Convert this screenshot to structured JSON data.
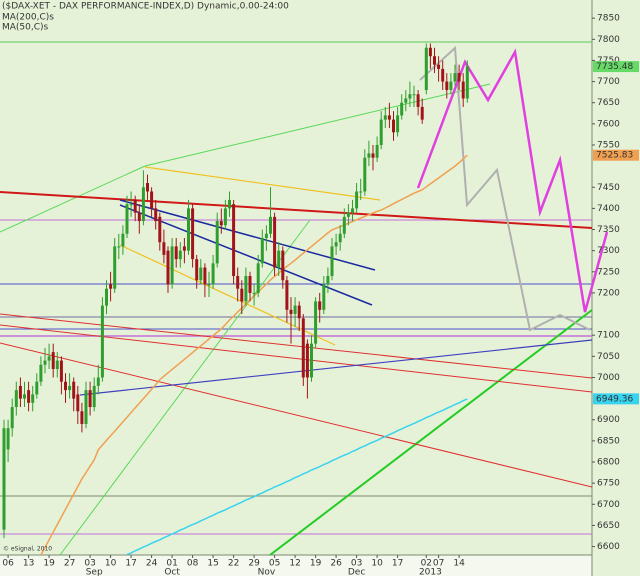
{
  "chart_data": {
    "type": "candlestick",
    "title": "($DAX-XET - DAX PERFORMANCE-INDEX,D) Dynamic,0.00-24:00",
    "categories": [
      null,
      "06",
      null,
      null,
      null,
      null,
      "13",
      null,
      null,
      null,
      null,
      "19",
      null,
      null,
      null,
      null,
      "27",
      null,
      null,
      null,
      null,
      "03",
      null,
      null,
      null,
      null,
      "10",
      null,
      null,
      null,
      null,
      "17",
      null,
      null,
      null,
      null,
      "24",
      null,
      null,
      null,
      null,
      "01",
      null,
      null,
      null,
      null,
      "08",
      null,
      null,
      null,
      null,
      "15",
      null,
      null,
      null,
      null,
      "22",
      null,
      null,
      null,
      null,
      "29",
      null,
      null,
      null,
      null,
      "05",
      null,
      null,
      null,
      null,
      "12",
      null,
      null,
      null,
      null,
      "19",
      null,
      null,
      null,
      null,
      "26",
      null,
      null,
      null,
      null,
      "03",
      null,
      null,
      null,
      null,
      "10",
      null,
      null,
      null,
      null,
      "17",
      null,
      null,
      null,
      null,
      null,
      null,
      "02",
      null,
      null,
      "07",
      null,
      null,
      null,
      null,
      "14",
      null,
      null
    ],
    "month_labels": [
      null,
      null,
      null,
      null,
      null,
      null,
      null,
      null,
      null,
      null,
      null,
      null,
      null,
      null,
      null,
      null,
      null,
      null,
      null,
      null,
      null,
      null,
      "Sep",
      null,
      null,
      null,
      null,
      null,
      null,
      null,
      null,
      null,
      null,
      null,
      null,
      null,
      null,
      null,
      null,
      null,
      null,
      "Oct",
      null,
      null,
      null,
      null,
      null,
      null,
      null,
      null,
      null,
      null,
      null,
      null,
      null,
      null,
      null,
      null,
      null,
      null,
      null,
      null,
      null,
      null,
      "Nov",
      null,
      null,
      null,
      null,
      null,
      null,
      null,
      null,
      null,
      null,
      null,
      null,
      null,
      null,
      null,
      null,
      null,
      null,
      null,
      null,
      null,
      "Dec",
      null,
      null,
      null,
      null,
      null,
      null,
      null,
      null,
      null,
      null,
      null,
      null,
      null,
      null,
      null,
      null,
      null,
      "2013",
      null,
      null,
      null,
      null,
      null,
      null,
      null,
      null,
      null
    ],
    "open": [
      6640,
      6830,
      6880,
      6930,
      6980,
      6950,
      6970,
      6940,
      6960,
      6990,
      7030,
      7040,
      7060,
      7020,
      7040,
      6990,
      6970,
      6990,
      6960,
      6920,
      6890,
      6970,
      6930,
      6980,
      7000,
      7170,
      7220,
      7210,
      7310,
      7310,
      7340,
      7410,
      7420,
      7390,
      7370,
      7460,
      7440,
      7400,
      7380,
      7320,
      7300,
      7220,
      7310,
      7280,
      7310,
      7300,
      7400,
      7280,
      7230,
      7260,
      7220,
      7220,
      7270,
      7370,
      7360,
      7400,
      7410,
      7240,
      7210,
      7180,
      7240,
      7200,
      7200,
      7270,
      7330,
      7340,
      7380,
      7260,
      7300,
      7230,
      7160,
      7150,
      7170,
      7140,
      7080,
      7000,
      7080,
      7180,
      7160,
      7220,
      7240,
      7310,
      7320,
      7340,
      7380,
      7390,
      7400,
      7440,
      7440,
      7520,
      7530,
      7520,
      7550,
      7610,
      7620,
      7610,
      7580,
      7620,
      7650,
      7660,
      7670,
      7670,
      7640,
      7680,
      7780,
      7760,
      7740,
      7730,
      7700,
      7680,
      7700,
      7720,
      7700,
      7660
    ],
    "high": [
      6900,
      6900,
      6950,
      6990,
      7000,
      6990,
      6990,
      6980,
      7010,
      7050,
      7070,
      7080,
      7080,
      7060,
      7050,
      7010,
      7010,
      7000,
      6980,
      6940,
      6990,
      6990,
      7000,
      7030,
      7190,
      7230,
      7250,
      7330,
      7340,
      7360,
      7430,
      7440,
      7430,
      7410,
      7490,
      7480,
      7450,
      7420,
      7390,
      7350,
      7310,
      7330,
      7330,
      7320,
      7330,
      7420,
      7410,
      7290,
      7280,
      7270,
      7250,
      7290,
      7390,
      7400,
      7420,
      7440,
      7420,
      7260,
      7230,
      7260,
      7250,
      7220,
      7290,
      7350,
      7360,
      7450,
      7390,
      7320,
      7310,
      7240,
      7190,
      7190,
      7180,
      7150,
      7090,
      7100,
      7190,
      7200,
      7240,
      7260,
      7330,
      7340,
      7360,
      7400,
      7410,
      7420,
      7460,
      7470,
      7540,
      7560,
      7550,
      7570,
      7630,
      7640,
      7650,
      7630,
      7640,
      7670,
      7680,
      7700,
      7690,
      7680,
      7660,
      7790,
      7790,
      7780,
      7760,
      7750,
      7720,
      7720,
      7740,
      7740,
      7720,
      7750
    ],
    "low": [
      6620,
      6800,
      6860,
      6910,
      6930,
      6930,
      6920,
      6920,
      6950,
      6980,
      7010,
      7020,
      7000,
      7000,
      6960,
      6940,
      6950,
      6920,
      6890,
      6870,
      6880,
      6910,
      6920,
      6960,
      6990,
      7150,
      7180,
      7200,
      7280,
      7290,
      7330,
      7380,
      7370,
      7340,
      7360,
      7420,
      7380,
      7350,
      7300,
      7270,
      7200,
      7210,
      7260,
      7260,
      7270,
      7290,
      7260,
      7210,
      7220,
      7190,
      7190,
      7210,
      7260,
      7340,
      7350,
      7380,
      7220,
      7180,
      7150,
      7170,
      7180,
      7170,
      7190,
      7260,
      7300,
      7330,
      7240,
      7240,
      7210,
      7130,
      7080,
      7120,
      7110,
      6980,
      6950,
      6990,
      7070,
      7130,
      7150,
      7200,
      7230,
      7290,
      7300,
      7330,
      7360,
      7370,
      7390,
      7420,
      7430,
      7500,
      7490,
      7510,
      7540,
      7590,
      7590,
      7560,
      7570,
      7610,
      7630,
      7640,
      7640,
      7620,
      7600,
      7670,
      7730,
      7720,
      7700,
      7680,
      7660,
      7670,
      7690,
      7680,
      7640,
      7650
    ],
    "close": [
      6880,
      6880,
      6930,
      6970,
      6950,
      6960,
      6940,
      6960,
      6990,
      7030,
      7040,
      7050,
      7020,
      7040,
      6990,
      6970,
      6980,
      6950,
      6920,
      6890,
      6970,
      6930,
      6980,
      7000,
      7170,
      7210,
      7210,
      7310,
      7310,
      7340,
      7410,
      7410,
      7390,
      7370,
      7450,
      7440,
      7400,
      7370,
      7320,
      7290,
      7220,
      7310,
      7280,
      7300,
      7300,
      7400,
      7280,
      7230,
      7260,
      7220,
      7220,
      7270,
      7370,
      7360,
      7400,
      7420,
      7240,
      7210,
      7180,
      7240,
      7200,
      7200,
      7270,
      7330,
      7340,
      7380,
      7260,
      7300,
      7230,
      7160,
      7150,
      7170,
      7140,
      7000,
      7000,
      7080,
      7180,
      7160,
      7220,
      7240,
      7310,
      7320,
      7340,
      7380,
      7390,
      7400,
      7440,
      7440,
      7520,
      7530,
      7520,
      7550,
      7610,
      7620,
      7610,
      7580,
      7620,
      7650,
      7660,
      7670,
      7670,
      7640,
      7610,
      7780,
      7760,
      7740,
      7730,
      7700,
      7680,
      7700,
      7720,
      7700,
      7660,
      7735.48
    ],
    "up_color": "#2f9e2f",
    "down_color": "#a3141a",
    "last_tag_color": "#66d966",
    "series": [
      {
        "name": "MA(200,C)s",
        "color": "#38d3ee",
        "values": [
          null,
          null,
          null,
          null,
          null,
          null,
          null,
          null,
          null,
          null,
          null,
          null,
          null,
          null,
          null,
          null,
          null,
          null,
          null,
          null,
          null,
          null,
          null,
          null,
          null,
          null,
          null,
          null,
          null,
          null,
          6581,
          6585,
          6590,
          6594,
          6599,
          6603,
          6608,
          6612,
          6616,
          6621,
          6625,
          6630,
          6634,
          6639,
          6643,
          6648,
          6652,
          6656,
          6661,
          6665,
          6670,
          6674,
          6679,
          6683,
          6687,
          6692,
          6696,
          6701,
          6705,
          6710,
          6714,
          6718,
          6723,
          6727,
          6732,
          6736,
          6741,
          6745,
          6749,
          6754,
          6758,
          6763,
          6767,
          6772,
          6776,
          6781,
          6785,
          6789,
          6794,
          6798,
          6803,
          6807,
          6812,
          6816,
          6820,
          6825,
          6829,
          6834,
          6838,
          6843,
          6847,
          6851,
          6856,
          6860,
          6865,
          6869,
          6874,
          6878,
          6883,
          6887,
          6891,
          6896,
          6900,
          6905,
          6909,
          6914,
          6918,
          6922,
          6927,
          6931,
          6936,
          6940,
          6945,
          6949.36
        ]
      },
      {
        "name": "MA(50,C)s",
        "color": "#f0a050",
        "values": [
          null,
          null,
          null,
          null,
          null,
          null,
          null,
          null,
          null,
          6580,
          6598,
          6616,
          6634,
          6652,
          6670,
          6688,
          6706,
          6724,
          6742,
          6760,
          6775,
          6790,
          6805,
          6829,
          6840,
          6851,
          6862,
          6873,
          6884,
          6895,
          6906,
          6917,
          6928,
          6939,
          6950,
          6961,
          6972,
          6983,
          6995,
          7003,
          7011,
          7019,
          7027,
          7035,
          7043,
          7051,
          7059,
          7067,
          7075,
          7083,
          7091,
          7099,
          7107,
          7115,
          7125,
          7136,
          7145,
          7155,
          7164,
          7174,
          7183,
          7193,
          7202,
          7212,
          7221,
          7231,
          7239,
          7247,
          7255,
          7263,
          7270,
          7278,
          7286,
          7294,
          7302,
          7310,
          7318,
          7326,
          7334,
          7342,
          7349,
          7353,
          7357,
          7361,
          7365,
          7369,
          7373,
          7377,
          7381,
          7385,
          7389,
          7393,
          7396,
          7401,
          7406,
          7411,
          7416,
          7421,
          7426,
          7431,
          7436,
          7440,
          7444,
          7451,
          7458,
          7465,
          7472,
          7479,
          7486,
          7493,
          7500,
          7508,
          7517,
          7525.83
        ]
      }
    ],
    "ylim": [
      6580,
      7893
    ],
    "yticks": [
      7850,
      7800,
      7750,
      7700,
      7650,
      7600,
      7550,
      7450,
      7400,
      7350,
      7300,
      7250,
      7200,
      7100,
      7050,
      7000,
      6900,
      6850,
      6800,
      6750,
      6700,
      6650,
      6600
    ]
  },
  "footer": {
    "copyright": "© eSignal, 2010"
  }
}
